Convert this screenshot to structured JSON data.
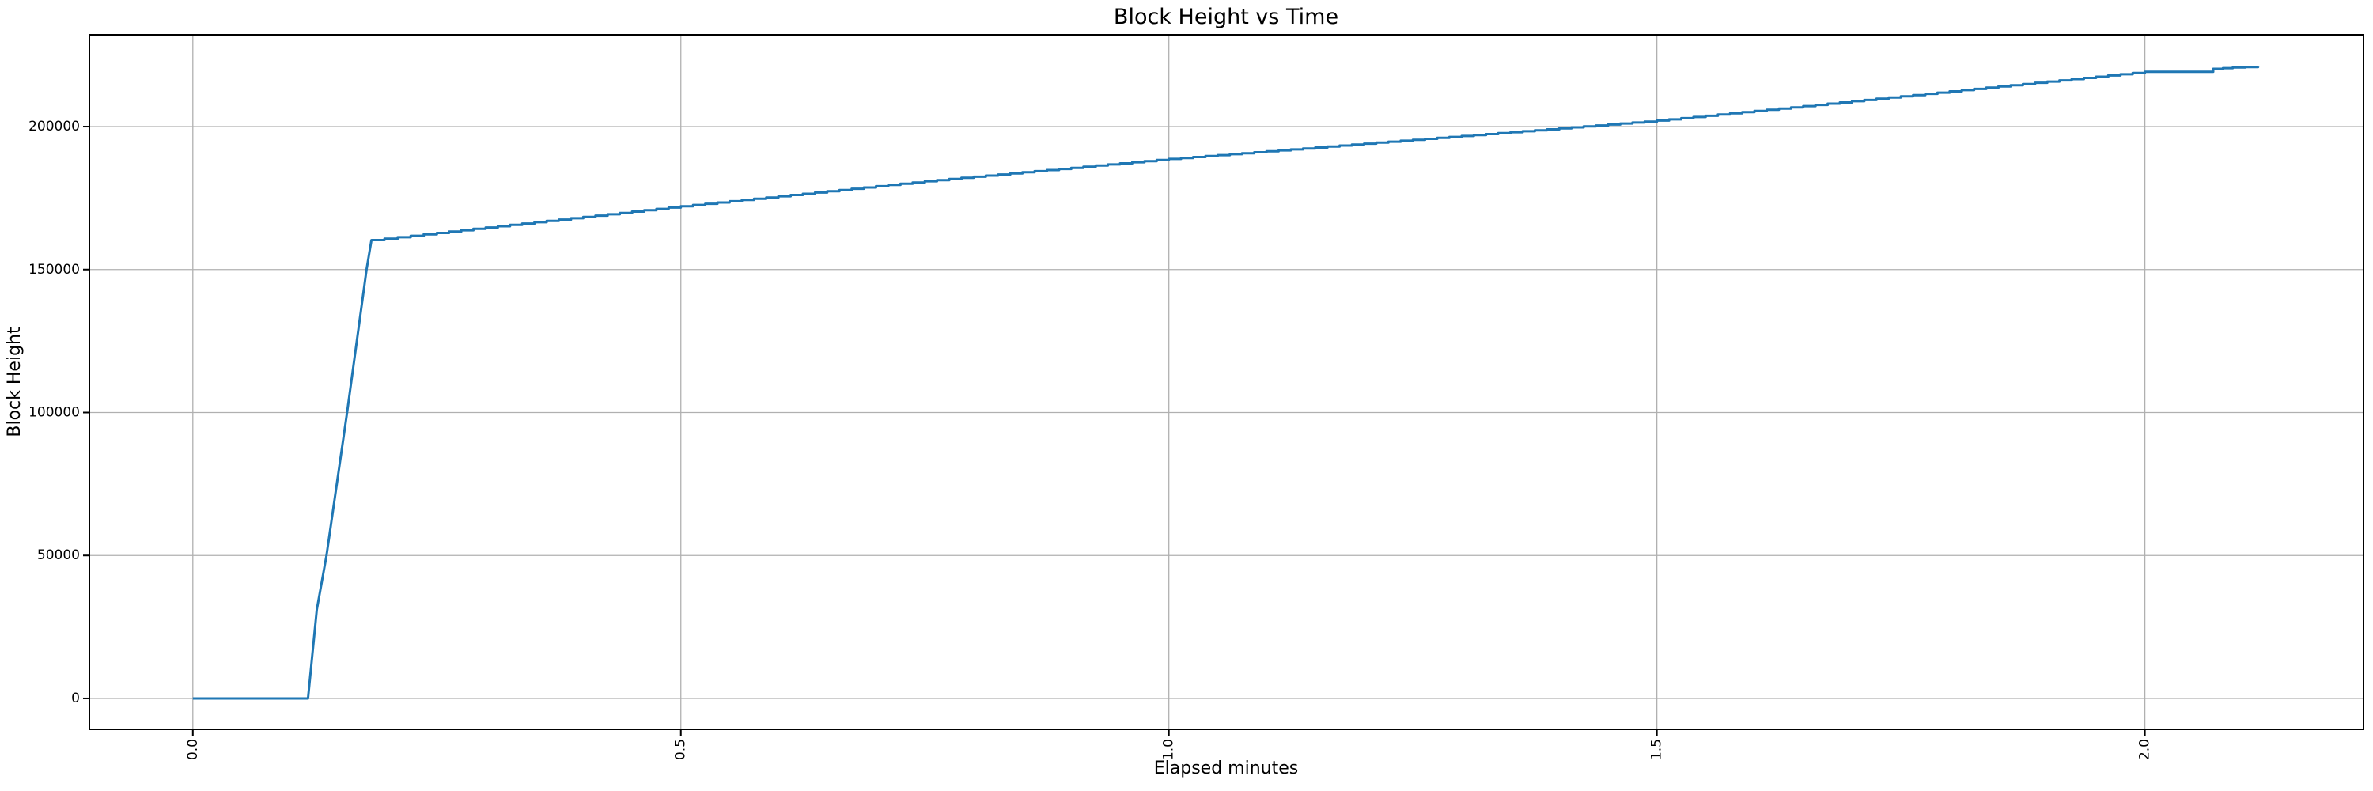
{
  "chart_data": {
    "type": "line",
    "title": "Block Height vs Time",
    "xlabel": "Elapsed minutes",
    "ylabel": "Block Height",
    "x_ticks": [
      0.0,
      0.5,
      1.0,
      1.5,
      2.0
    ],
    "x_tick_labels": [
      "0.0",
      "0.5",
      "1.0",
      "1.5",
      "2.0"
    ],
    "x_tick_rotation_deg": 90,
    "y_ticks": [
      0,
      50000,
      100000,
      150000,
      200000
    ],
    "y_tick_labels": [
      "0",
      "50000",
      "100000",
      "150000",
      "200000"
    ],
    "xlim": [
      -0.106,
      2.224
    ],
    "ylim": [
      -10800,
      232100
    ],
    "grid": true,
    "legend": "none",
    "line_color": "#1f77b4",
    "grid_color": "#b0b0b0",
    "spine_color": "#000000",
    "background_color": "#ffffff",
    "series": [
      {
        "name": "block-height",
        "style": "stepped-line",
        "points": [
          [
            0.0,
            0
          ],
          [
            0.118,
            0
          ],
          [
            0.127,
            31000
          ],
          [
            0.137,
            50000
          ],
          [
            0.158,
            100000
          ],
          [
            0.178,
            150000
          ],
          [
            0.183,
            160300
          ],
          [
            0.25,
            162800
          ],
          [
            0.3,
            164700
          ],
          [
            0.4,
            168400
          ],
          [
            0.5,
            172150
          ],
          [
            0.625,
            176500
          ],
          [
            0.75,
            180900
          ],
          [
            0.875,
            184800
          ],
          [
            1.0,
            188700
          ],
          [
            1.125,
            192000
          ],
          [
            1.25,
            195400
          ],
          [
            1.375,
            198700
          ],
          [
            1.5,
            202100
          ],
          [
            1.625,
            206300
          ],
          [
            1.75,
            210600
          ],
          [
            1.875,
            214900
          ],
          [
            2.0,
            219150
          ],
          [
            2.063,
            219150
          ],
          [
            2.07,
            220200
          ],
          [
            2.09,
            220700
          ],
          [
            2.116,
            221000
          ]
        ]
      }
    ],
    "render_hints": {
      "step_interval_min": 0.0122,
      "steep_slope_threshold": 300000
    }
  }
}
